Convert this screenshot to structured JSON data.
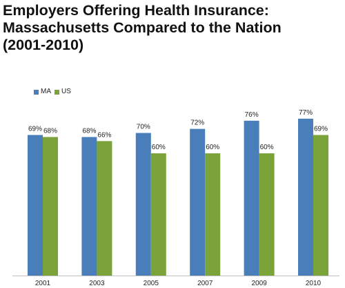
{
  "title": {
    "line1": "Employers Offering Health Insurance:",
    "line2": "Massachusetts Compared to the Nation",
    "line3": "(2001-2010)"
  },
  "legend": {
    "items": [
      {
        "label": "MA",
        "color": "#4a7ebb"
      },
      {
        "label": "US",
        "color": "#7aa43a"
      }
    ]
  },
  "chart_data": {
    "type": "bar",
    "title": "Employers Offering Health Insurance: Massachusetts Compared to the Nation (2001-2010)",
    "categories": [
      "2001",
      "2003",
      "2005",
      "2007",
      "2009",
      "2010"
    ],
    "series": [
      {
        "name": "MA",
        "values": [
          69,
          68,
          70,
          72,
          76,
          77
        ],
        "labels": [
          "69%",
          "68%",
          "70%",
          "72%",
          "76%",
          "77%"
        ],
        "color": "#4a7ebb"
      },
      {
        "name": "US",
        "values": [
          68,
          66,
          60,
          60,
          60,
          69
        ],
        "labels": [
          "68%",
          "66%",
          "60%",
          "60%",
          "60%",
          "69%"
        ],
        "color": "#7aa43a"
      }
    ],
    "xlabel": "",
    "ylabel": "",
    "ylim": [
      0,
      100
    ],
    "grid": false,
    "legend_position": "top-left",
    "data_labels": true
  }
}
